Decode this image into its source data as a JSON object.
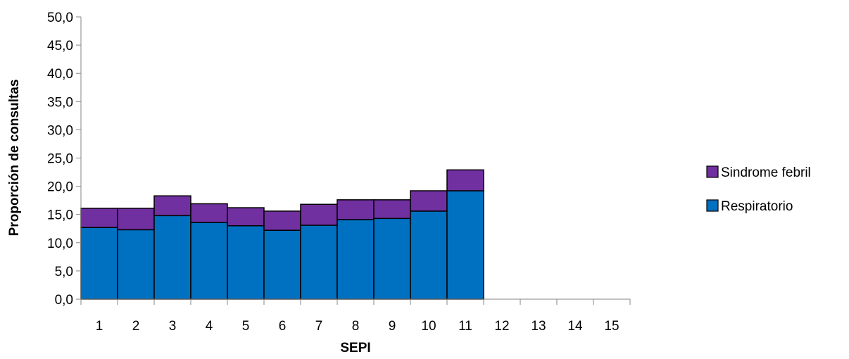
{
  "chart_data": {
    "type": "bar",
    "stacked": true,
    "categories": [
      "1",
      "2",
      "3",
      "4",
      "5",
      "6",
      "7",
      "8",
      "9",
      "10",
      "11",
      "12",
      "13",
      "14",
      "15"
    ],
    "series": [
      {
        "name": "Respiratorio",
        "color": "#0070C0",
        "values": [
          12.7,
          12.3,
          14.8,
          13.6,
          13.0,
          12.2,
          13.1,
          14.1,
          14.3,
          15.6,
          19.2,
          null,
          null,
          null,
          null
        ]
      },
      {
        "name": "Sindrome febril",
        "color": "#7030A0",
        "values": [
          3.4,
          3.8,
          3.5,
          3.3,
          3.2,
          3.4,
          3.7,
          3.5,
          3.3,
          3.6,
          3.7,
          null,
          null,
          null,
          null
        ]
      }
    ],
    "xlabel": "SEPI",
    "ylabel": "Proporción de consultas",
    "ylim": [
      0,
      50
    ],
    "ytick_step": 5,
    "ytick_labels": [
      "0,0",
      "5,0",
      "10,0",
      "15,0",
      "20,0",
      "25,0",
      "30,0",
      "35,0",
      "40,0",
      "45,0",
      "50,0"
    ],
    "grid": false,
    "legend": {
      "position": "right",
      "entries": [
        "Sindrome febril",
        "Respiratorio"
      ]
    }
  }
}
